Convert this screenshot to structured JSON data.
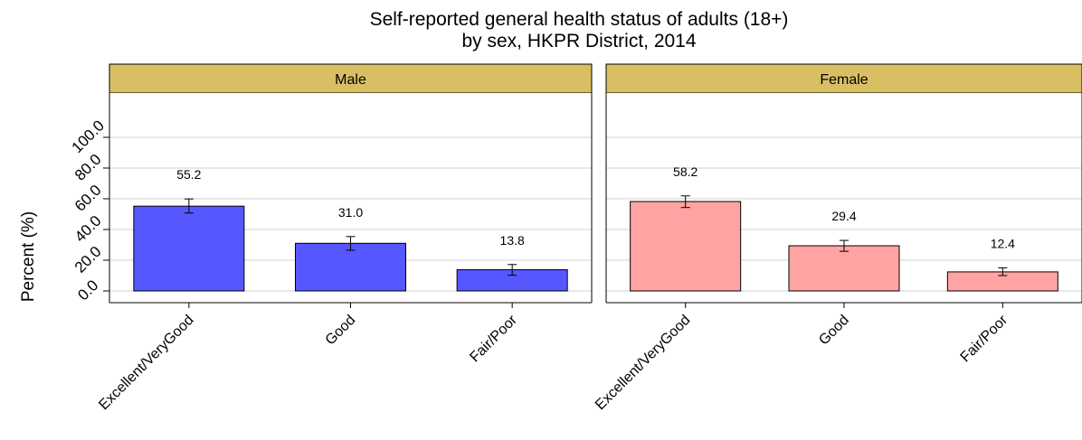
{
  "chart_data": {
    "type": "bar",
    "title": "Self-reported general health status of adults (18+)",
    "subtitle": "by sex, HKPR District, 2014",
    "ylabel": "Percent (%)",
    "xlabel": "",
    "ylim": [
      0,
      100
    ],
    "yticks": [
      "0.0",
      "20.0",
      "40.0",
      "60.0",
      "80.0",
      "100.0"
    ],
    "grid": true,
    "legend": "none",
    "categories": [
      "Excellent/VeryGood",
      "Good",
      "Fair/Poor"
    ],
    "panels": [
      {
        "name": "Male",
        "color": "#5757ff",
        "values": [
          55.2,
          31.0,
          13.8
        ],
        "labels": [
          "55.2",
          "31.0",
          "13.8"
        ],
        "error_low": [
          50.7,
          26.5,
          10.2
        ],
        "error_high": [
          59.9,
          35.4,
          17.2
        ]
      },
      {
        "name": "Female",
        "color": "#ffa3a3",
        "values": [
          58.2,
          29.4,
          12.4
        ],
        "labels": [
          "58.2",
          "29.4",
          "12.4"
        ],
        "error_low": [
          54.3,
          25.8,
          10.0
        ],
        "error_high": [
          61.9,
          32.9,
          15.0
        ]
      }
    ],
    "strip_color": "#d9bf63",
    "grid_color": "#d9d9d9"
  }
}
